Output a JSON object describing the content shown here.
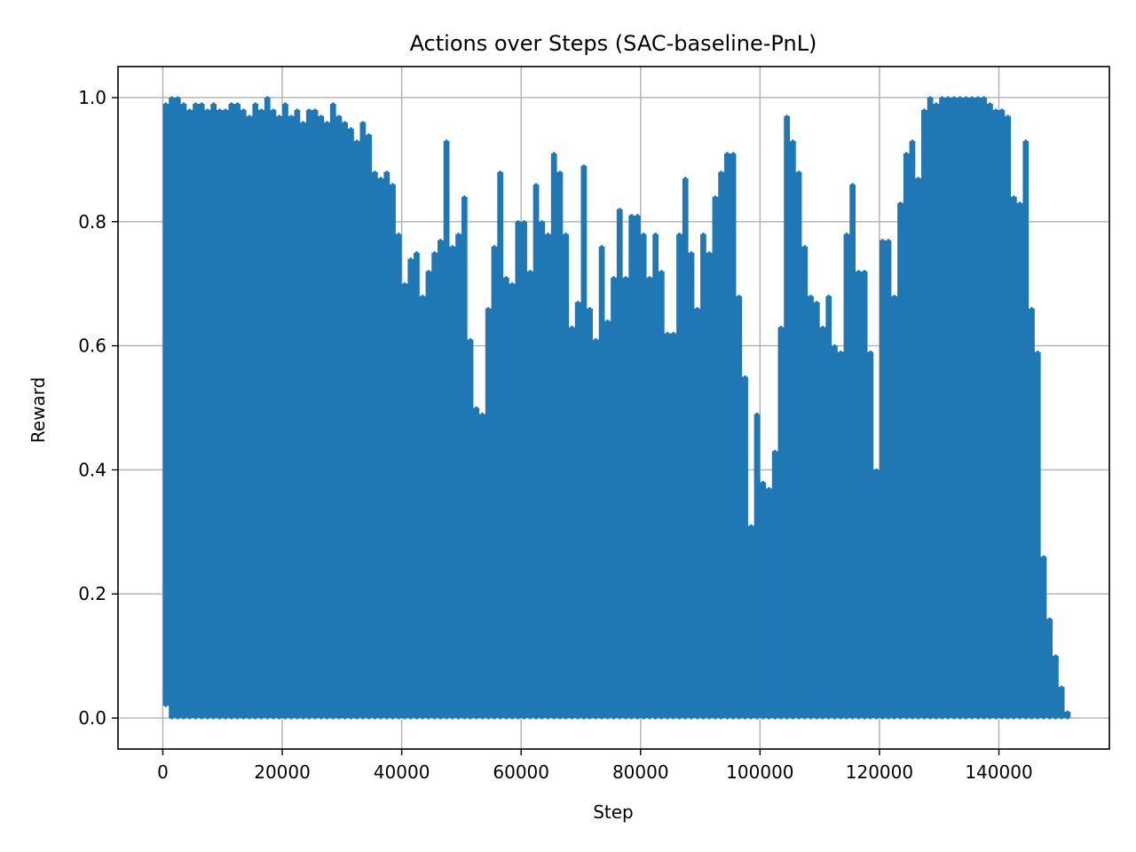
{
  "chart_data": {
    "type": "line",
    "title": "Actions over Steps (SAC-baseline-PnL)",
    "xlabel": "Step",
    "ylabel": "Reward",
    "xlim": [
      -7500,
      158500
    ],
    "ylim": [
      -0.05,
      1.05
    ],
    "xticks": [
      0,
      20000,
      40000,
      60000,
      80000,
      100000,
      120000,
      140000
    ],
    "xtick_labels": [
      "0",
      "20000",
      "40000",
      "60000",
      "80000",
      "100000",
      "120000",
      "140000"
    ],
    "yticks": [
      0.0,
      0.2,
      0.4,
      0.6,
      0.8,
      1.0
    ],
    "ytick_labels": [
      "0.0",
      "0.2",
      "0.4",
      "0.6",
      "0.8",
      "1.0"
    ],
    "grid": true,
    "legend": "none",
    "series": [
      {
        "color": "#1f77b4",
        "envelope_step": 1000,
        "x": [
          0,
          1000,
          2000,
          3000,
          4000,
          5000,
          6000,
          7000,
          8000,
          9000,
          10000,
          11000,
          12000,
          13000,
          14000,
          15000,
          16000,
          17000,
          18000,
          19000,
          20000,
          21000,
          22000,
          23000,
          24000,
          25000,
          26000,
          27000,
          28000,
          29000,
          30000,
          31000,
          32000,
          33000,
          34000,
          35000,
          36000,
          37000,
          38000,
          39000,
          40000,
          41000,
          42000,
          43000,
          44000,
          45000,
          46000,
          47000,
          48000,
          49000,
          50000,
          51000,
          52000,
          53000,
          54000,
          55000,
          56000,
          57000,
          58000,
          59000,
          60000,
          61000,
          62000,
          63000,
          64000,
          65000,
          66000,
          67000,
          68000,
          69000,
          70000,
          71000,
          72000,
          73000,
          74000,
          75000,
          76000,
          77000,
          78000,
          79000,
          80000,
          81000,
          82000,
          83000,
          84000,
          85000,
          86000,
          87000,
          88000,
          89000,
          90000,
          91000,
          92000,
          93000,
          94000,
          95000,
          96000,
          97000,
          98000,
          99000,
          100000,
          101000,
          102000,
          103000,
          104000,
          105000,
          106000,
          107000,
          108000,
          109000,
          110000,
          111000,
          112000,
          113000,
          114000,
          115000,
          116000,
          117000,
          118000,
          119000,
          120000,
          121000,
          122000,
          123000,
          124000,
          125000,
          126000,
          127000,
          128000,
          129000,
          130000,
          131000,
          132000,
          133000,
          134000,
          135000,
          136000,
          137000,
          138000,
          139000,
          140000,
          141000,
          142000,
          143000,
          144000,
          145000,
          146000,
          147000,
          148000,
          149000,
          150000,
          151000
        ],
        "y_max": [
          0.99,
          1.0,
          1.0,
          0.99,
          0.98,
          0.99,
          0.99,
          0.98,
          0.99,
          0.98,
          0.98,
          0.99,
          0.99,
          0.98,
          0.97,
          0.99,
          0.98,
          1.0,
          0.98,
          0.97,
          0.99,
          0.97,
          0.98,
          0.96,
          0.98,
          0.98,
          0.97,
          0.96,
          0.99,
          0.97,
          0.96,
          0.95,
          0.93,
          0.96,
          0.94,
          0.88,
          0.87,
          0.88,
          0.86,
          0.78,
          0.7,
          0.74,
          0.75,
          0.68,
          0.72,
          0.75,
          0.77,
          0.93,
          0.76,
          0.78,
          0.84,
          0.61,
          0.5,
          0.49,
          0.66,
          0.76,
          0.88,
          0.71,
          0.7,
          0.8,
          0.8,
          0.72,
          0.86,
          0.8,
          0.78,
          0.91,
          0.88,
          0.78,
          0.63,
          0.67,
          0.89,
          0.66,
          0.61,
          0.76,
          0.64,
          0.71,
          0.82,
          0.71,
          0.81,
          0.81,
          0.78,
          0.71,
          0.78,
          0.72,
          0.62,
          0.62,
          0.78,
          0.87,
          0.75,
          0.66,
          0.78,
          0.75,
          0.84,
          0.88,
          0.91,
          0.91,
          0.68,
          0.55,
          0.31,
          0.49,
          0.38,
          0.37,
          0.43,
          0.63,
          0.97,
          0.93,
          0.88,
          0.76,
          0.68,
          0.67,
          0.63,
          0.68,
          0.6,
          0.59,
          0.78,
          0.86,
          0.72,
          0.72,
          0.59,
          0.4,
          0.77,
          0.77,
          0.68,
          0.83,
          0.91,
          0.93,
          0.87,
          0.98,
          1.0,
          0.99,
          1.0,
          1.0,
          1.0,
          1.0,
          1.0,
          1.0,
          1.0,
          1.0,
          0.99,
          0.98,
          0.98,
          0.97,
          0.84,
          0.83,
          0.93,
          0.66,
          0.59,
          0.26,
          0.16,
          0.1,
          0.05,
          0.01
        ],
        "y_min": [
          0.02,
          0.0,
          0.0,
          0.0,
          0.0,
          0.0,
          0.0,
          0.0,
          0.0,
          0.0,
          0.0,
          0.0,
          0.0,
          0.0,
          0.0,
          0.0,
          0.0,
          0.0,
          0.0,
          0.0,
          0.0,
          0.0,
          0.0,
          0.0,
          0.0,
          0.0,
          0.0,
          0.0,
          0.0,
          0.0,
          0.0,
          0.0,
          0.0,
          0.0,
          0.0,
          0.0,
          0.0,
          0.0,
          0.0,
          0.0,
          0.0,
          0.0,
          0.0,
          0.0,
          0.0,
          0.0,
          0.0,
          0.0,
          0.0,
          0.0,
          0.0,
          0.0,
          0.0,
          0.0,
          0.0,
          0.0,
          0.0,
          0.0,
          0.0,
          0.0,
          0.0,
          0.0,
          0.0,
          0.0,
          0.0,
          0.0,
          0.0,
          0.0,
          0.0,
          0.0,
          0.0,
          0.0,
          0.0,
          0.0,
          0.0,
          0.0,
          0.0,
          0.0,
          0.0,
          0.0,
          0.0,
          0.0,
          0.0,
          0.0,
          0.0,
          0.0,
          0.0,
          0.0,
          0.0,
          0.0,
          0.0,
          0.0,
          0.0,
          0.0,
          0.0,
          0.0,
          0.0,
          0.0,
          0.0,
          0.0,
          0.0,
          0.0,
          0.0,
          0.0,
          0.0,
          0.0,
          0.0,
          0.0,
          0.0,
          0.0,
          0.0,
          0.0,
          0.0,
          0.0,
          0.0,
          0.0,
          0.0,
          0.0,
          0.0,
          0.0,
          0.0,
          0.0,
          0.0,
          0.0,
          0.0,
          0.0,
          0.0,
          0.0,
          0.0,
          0.0,
          0.0,
          0.0,
          0.0,
          0.0,
          0.0,
          0.0,
          0.0,
          0.0,
          0.0,
          0.0,
          0.0,
          0.0,
          0.0,
          0.0,
          0.0,
          0.0,
          0.0,
          0.0,
          0.0,
          0.0,
          0.0,
          0.0
        ]
      }
    ]
  }
}
